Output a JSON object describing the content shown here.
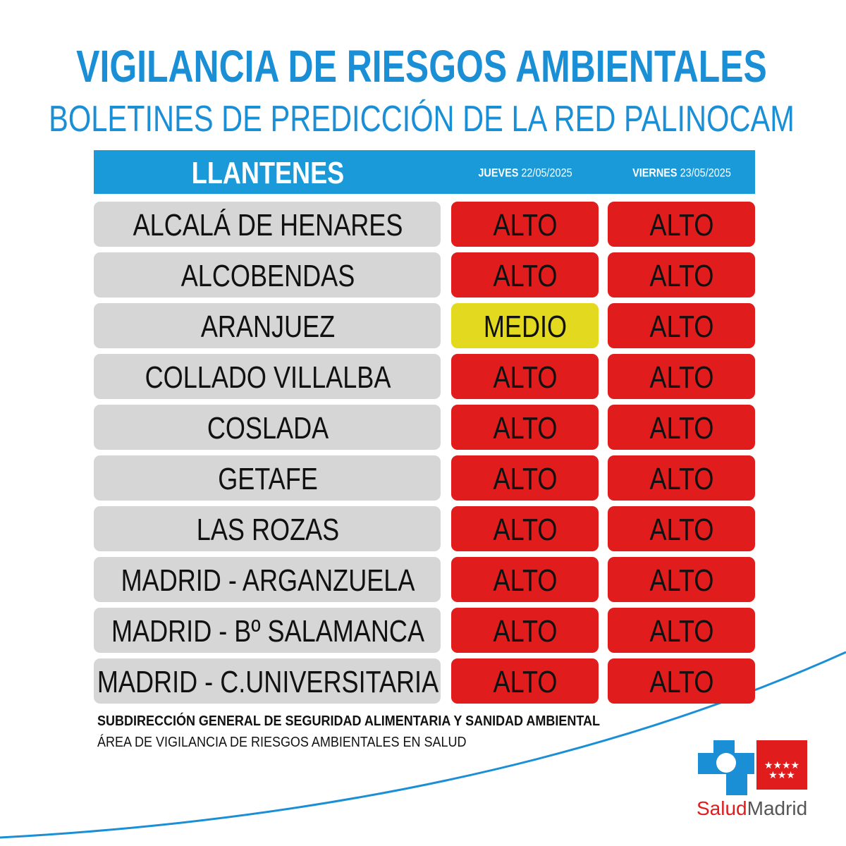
{
  "header": {
    "title": "VIGILANCIA DE RIESGOS AMBIENTALES",
    "subtitle": "BOLETINES DE PREDICCIÓN DE LA RED PALINOCAM"
  },
  "table": {
    "title": "LLANTENES",
    "columns": [
      {
        "day": "JUEVES",
        "date": "22/05/2025"
      },
      {
        "day": "VIERNES",
        "date": "23/05/2025"
      }
    ],
    "rows": [
      {
        "name": "ALCALÁ DE HENARES",
        "levels": [
          {
            "text": "ALTO",
            "color": "#e01c1c"
          },
          {
            "text": "ALTO",
            "color": "#e01c1c"
          }
        ]
      },
      {
        "name": "ALCOBENDAS",
        "levels": [
          {
            "text": "ALTO",
            "color": "#e01c1c"
          },
          {
            "text": "ALTO",
            "color": "#e01c1c"
          }
        ]
      },
      {
        "name": "ARANJUEZ",
        "levels": [
          {
            "text": "MEDIO",
            "color": "#e3d91f"
          },
          {
            "text": "ALTO",
            "color": "#e01c1c"
          }
        ]
      },
      {
        "name": "COLLADO VILLALBA",
        "levels": [
          {
            "text": "ALTO",
            "color": "#e01c1c"
          },
          {
            "text": "ALTO",
            "color": "#e01c1c"
          }
        ]
      },
      {
        "name": "COSLADA",
        "levels": [
          {
            "text": "ALTO",
            "color": "#e01c1c"
          },
          {
            "text": "ALTO",
            "color": "#e01c1c"
          }
        ]
      },
      {
        "name": "GETAFE",
        "levels": [
          {
            "text": "ALTO",
            "color": "#e01c1c"
          },
          {
            "text": "ALTO",
            "color": "#e01c1c"
          }
        ]
      },
      {
        "name": "LAS ROZAS",
        "levels": [
          {
            "text": "ALTO",
            "color": "#e01c1c"
          },
          {
            "text": "ALTO",
            "color": "#e01c1c"
          }
        ]
      },
      {
        "name": "MADRID - ARGANZUELA",
        "levels": [
          {
            "text": "ALTO",
            "color": "#e01c1c"
          },
          {
            "text": "ALTO",
            "color": "#e01c1c"
          }
        ]
      },
      {
        "name": "MADRID - Bº SALAMANCA",
        "levels": [
          {
            "text": "ALTO",
            "color": "#e01c1c"
          },
          {
            "text": "ALTO",
            "color": "#e01c1c"
          }
        ]
      },
      {
        "name": "MADRID - C.UNIVERSITARIA",
        "levels": [
          {
            "text": "ALTO",
            "color": "#e01c1c"
          },
          {
            "text": "ALTO",
            "color": "#e01c1c"
          }
        ]
      }
    ]
  },
  "footer": {
    "line1": "SUBDIRECCIÓN GENERAL DE SEGURIDAD ALIMENTARIA Y SANIDAD AMBIENTAL",
    "line2": "ÁREA DE VIGILANCIA DE RIESGOS AMBIENTALES EN SALUD"
  },
  "logo": {
    "part1": "Salud",
    "part2": "Madrid"
  }
}
